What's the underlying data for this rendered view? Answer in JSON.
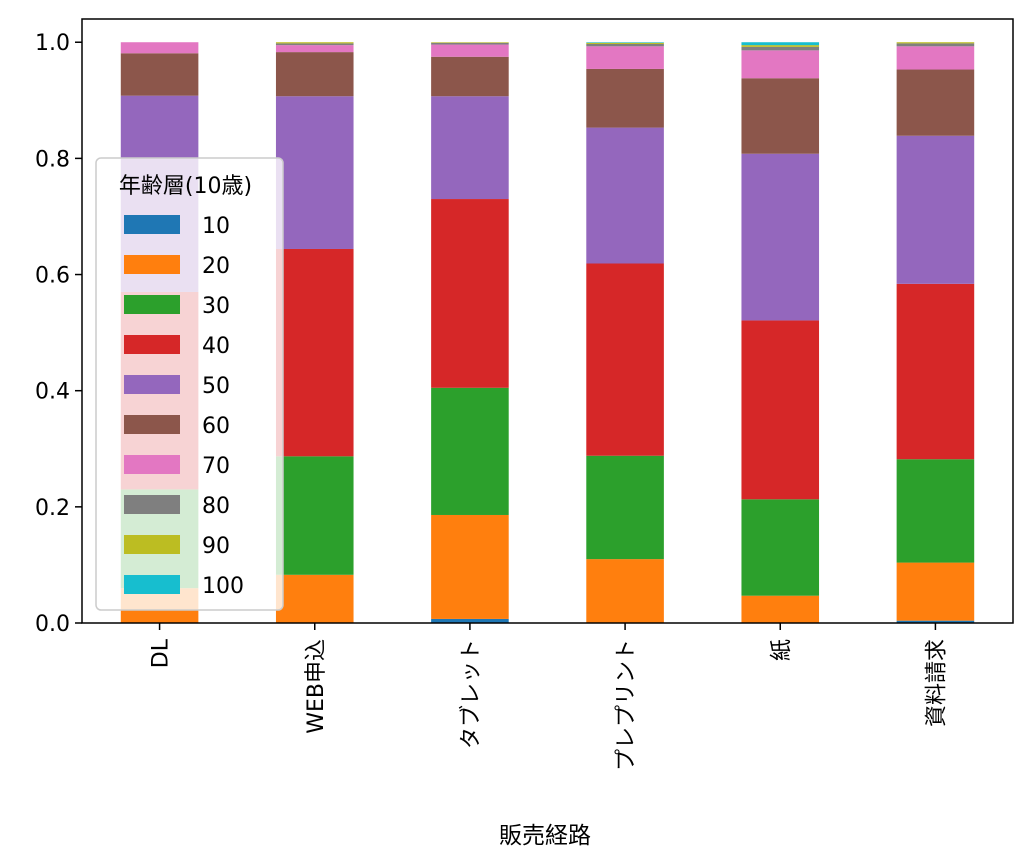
{
  "chart_data": {
    "type": "bar",
    "stacked": true,
    "title": "",
    "xlabel": "販売経路",
    "ylabel": "",
    "ylim": [
      0,
      1.04
    ],
    "yticks": [
      "0.0",
      "0.2",
      "0.4",
      "0.6",
      "0.8",
      "1.0"
    ],
    "grid": false,
    "categories": [
      "DL",
      "WEB申込",
      "タブレット",
      "プレプリント",
      "紙",
      "資料請求"
    ],
    "legend": {
      "title": "年齢層(10歳)",
      "placement": "center-left"
    },
    "series": [
      {
        "name": "10",
        "color": "#1f77b4",
        "values": [
          0.0,
          0.0,
          0.007,
          0.0,
          0.0,
          0.004
        ]
      },
      {
        "name": "20",
        "color": "#ff7f0e",
        "values": [
          0.06,
          0.083,
          0.179,
          0.11,
          0.047,
          0.1
        ]
      },
      {
        "name": "30",
        "color": "#2ca02c",
        "values": [
          0.17,
          0.204,
          0.219,
          0.178,
          0.166,
          0.178
        ]
      },
      {
        "name": "40",
        "color": "#d62728",
        "values": [
          0.34,
          0.357,
          0.325,
          0.331,
          0.308,
          0.302
        ]
      },
      {
        "name": "50",
        "color": "#9467bd",
        "values": [
          0.338,
          0.263,
          0.177,
          0.234,
          0.287,
          0.255
        ]
      },
      {
        "name": "60",
        "color": "#8c564b",
        "values": [
          0.073,
          0.076,
          0.068,
          0.101,
          0.13,
          0.114
        ]
      },
      {
        "name": "70",
        "color": "#e377c2",
        "values": [
          0.019,
          0.012,
          0.021,
          0.039,
          0.048,
          0.04
        ]
      },
      {
        "name": "80",
        "color": "#7f7f7f",
        "values": [
          0.0,
          0.003,
          0.003,
          0.004,
          0.006,
          0.005
        ]
      },
      {
        "name": "90",
        "color": "#bcbd22",
        "values": [
          0.0,
          0.002,
          0.001,
          0.002,
          0.003,
          0.002
        ]
      },
      {
        "name": "100",
        "color": "#17becf",
        "values": [
          0.0,
          0.0,
          0.0,
          0.001,
          0.005,
          0.0
        ]
      }
    ]
  }
}
